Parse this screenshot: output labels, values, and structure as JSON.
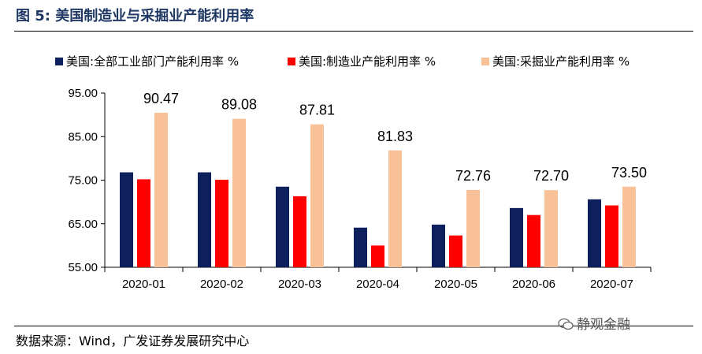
{
  "header": {
    "title": "图 5:  美国制造业与采掘业产能利用率"
  },
  "footer": {
    "source": "数据来源：Wind，广发证券发展研究中心",
    "watermark": "静观金融"
  },
  "chart_data": {
    "type": "bar",
    "categories": [
      "2020-01",
      "2020-02",
      "2020-03",
      "2020-04",
      "2020-05",
      "2020-06",
      "2020-07"
    ],
    "series": [
      {
        "name": "美国:全部工业部门产能利用率 %",
        "color": "#0d1f5c",
        "values": [
          76.8,
          76.8,
          73.5,
          64.1,
          64.8,
          68.6,
          70.6
        ]
      },
      {
        "name": "美国:制造业产能利用率 %",
        "color": "#ff0000",
        "values": [
          75.2,
          75.1,
          71.3,
          60.0,
          62.3,
          67.0,
          69.2
        ]
      },
      {
        "name": "美国:采掘业产能利用率 %",
        "color": "#f8c197",
        "values": [
          90.47,
          89.08,
          87.81,
          81.83,
          72.76,
          72.7,
          73.5
        ]
      }
    ],
    "data_labels": [
      "90.47",
      "89.08",
      "87.81",
      "81.83",
      "72.76",
      "72.70",
      "73.50"
    ],
    "y_ticks": [
      "55.00",
      "65.00",
      "75.00",
      "85.00",
      "95.00"
    ],
    "ylim": [
      55,
      95
    ],
    "grid": false,
    "legend_position": "top"
  }
}
